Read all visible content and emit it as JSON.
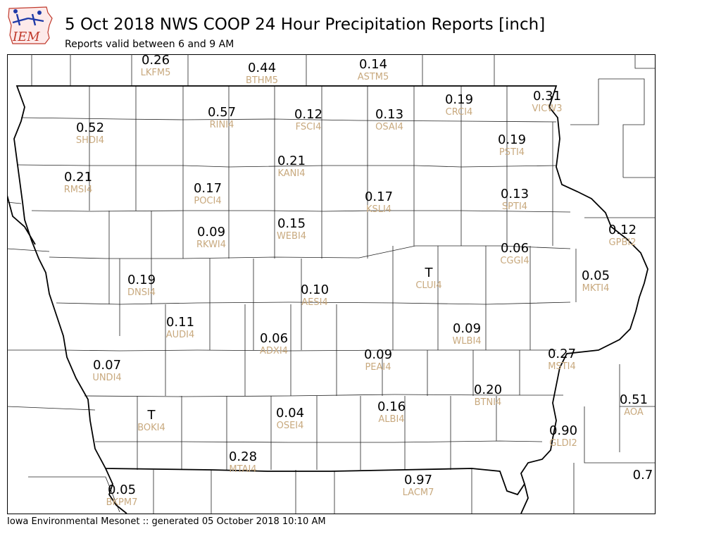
{
  "header": {
    "title": "5 Oct 2018 NWS COOP 24 Hour Precipitation Reports [inch]",
    "subtitle": "Reports valid between 6 and 9 AM"
  },
  "logo": {
    "text": "IEM",
    "icon": "iowa-state-logo-icon",
    "color": "#c0392b"
  },
  "footer": {
    "text": "Iowa Environmental Mesonet :: generated 05 October 2018 10:10 AM"
  },
  "colors": {
    "value": "#000000",
    "station_id": "#c8a97e",
    "border": "#000000"
  },
  "stations": [
    {
      "id": "LKFM5",
      "value": "0.26"
    },
    {
      "id": "BTHM5",
      "value": "0.44"
    },
    {
      "id": "ASTM5",
      "value": "0.14"
    },
    {
      "id": "RINI4",
      "value": "0.57"
    },
    {
      "id": "FSCI4",
      "value": "0.12"
    },
    {
      "id": "OSAI4",
      "value": "0.13"
    },
    {
      "id": "CRCI4",
      "value": "0.19"
    },
    {
      "id": "VICW3",
      "value": "0.31"
    },
    {
      "id": "SHDI4",
      "value": "0.52"
    },
    {
      "id": "PSTI4",
      "value": "0.19"
    },
    {
      "id": "KANI4",
      "value": "0.21"
    },
    {
      "id": "RMSI4",
      "value": "0.21"
    },
    {
      "id": "POCI4",
      "value": "0.17"
    },
    {
      "id": "KSLI4",
      "value": "0.17"
    },
    {
      "id": "SPTI4",
      "value": "0.13"
    },
    {
      "id": "RKWI4",
      "value": "0.09"
    },
    {
      "id": "WEBI4",
      "value": "0.15"
    },
    {
      "id": "GPBI2",
      "value": "0.12"
    },
    {
      "id": "CGGI4",
      "value": "0.06"
    },
    {
      "id": "CLUI4",
      "value": "T"
    },
    {
      "id": "DNSI4",
      "value": "0.19"
    },
    {
      "id": "AESI4",
      "value": "0.10"
    },
    {
      "id": "MKTI4",
      "value": "0.05"
    },
    {
      "id": "AUDI4",
      "value": "0.11"
    },
    {
      "id": "ADXI4",
      "value": "0.06"
    },
    {
      "id": "WLBI4",
      "value": "0.09"
    },
    {
      "id": "PEAI4",
      "value": "0.09"
    },
    {
      "id": "MSTI4",
      "value": "0.27"
    },
    {
      "id": "UNDI4",
      "value": "0.07"
    },
    {
      "id": "BTNI4",
      "value": "0.20"
    },
    {
      "id": "AOA",
      "value": "0.51"
    },
    {
      "id": "BOKI4",
      "value": "T"
    },
    {
      "id": "OSEI4",
      "value": "0.04"
    },
    {
      "id": "ALBI4",
      "value": "0.16"
    },
    {
      "id": "GLDI2",
      "value": "0.90"
    },
    {
      "id": "MTAI4",
      "value": "0.28"
    },
    {
      "id": "LACM7",
      "value": "0.97"
    },
    {
      "id": "",
      "value": "0.7"
    },
    {
      "id": "BKPM7",
      "value": "0.05"
    }
  ]
}
